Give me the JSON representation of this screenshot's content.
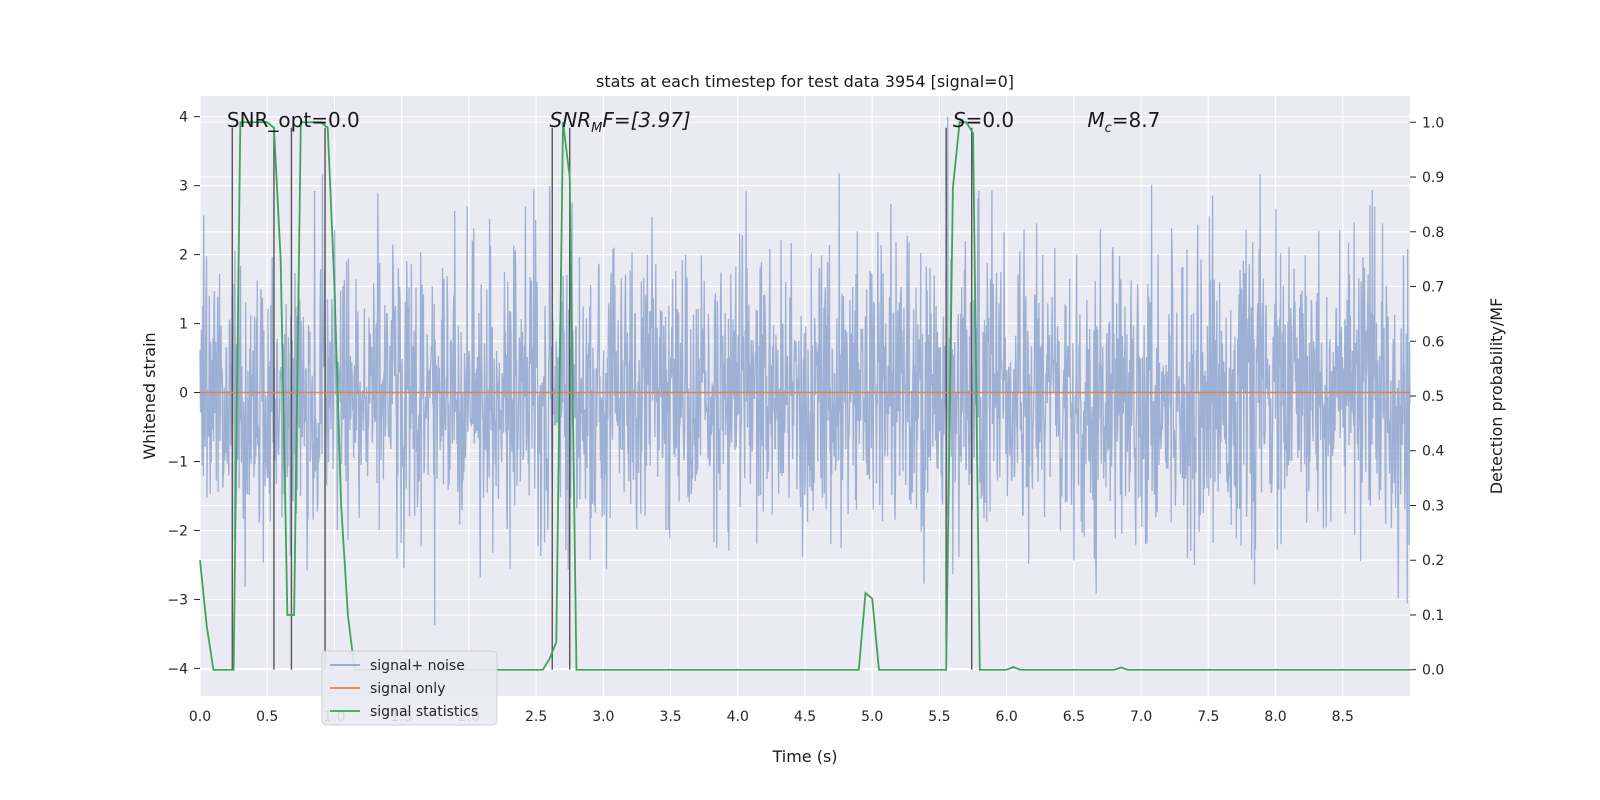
{
  "chart_data": {
    "type": "line",
    "title": "stats at each timestep for test data 3954 [signal=0]",
    "xlabel": "Time (s)",
    "ylabel": "Whitened strain",
    "ylabel_right": "Detection probability/MF",
    "xlim": [
      0,
      9
    ],
    "ylim": [
      -4.4,
      4.3
    ],
    "ylim_right": [
      -0.048,
      1.048
    ],
    "x_ticks": [
      "0.0",
      "0.5",
      "1.0",
      "1.5",
      "2.0",
      "2.5",
      "3.0",
      "3.5",
      "4.0",
      "4.5",
      "5.0",
      "5.5",
      "6.0",
      "6.5",
      "7.0",
      "7.5",
      "8.0",
      "8.5"
    ],
    "y_ticks": [
      "4",
      "3",
      "2",
      "1",
      "0",
      "−1",
      "−2",
      "−3",
      "−4"
    ],
    "y_ticks_right": [
      "1.0",
      "0.9",
      "0.8",
      "0.7",
      "0.6",
      "0.5",
      "0.4",
      "0.3",
      "0.2",
      "0.1",
      "0.0"
    ],
    "grid": true,
    "legend_position": "lower-left",
    "annotations": {
      "snr_opt": "SNR_opt=0.0",
      "snr_mf_main": "SNR",
      "snr_mf_sub": "M",
      "snr_mf_rest": "F=[3.97]",
      "s_main": "S",
      "s_rest": "=0.0",
      "mc_main": "M",
      "mc_sub": "c",
      "mc_rest": "=8.7"
    },
    "series": [
      {
        "name": "signal+ noise",
        "color": "#8fa5cc",
        "description": "whitened noise, approx. std 1.0 around 0",
        "amplitude_range": [
          -4.0,
          4.0
        ]
      },
      {
        "name": "signal only",
        "color": "#dd8452",
        "x": [
          0,
          9
        ],
        "y": [
          0,
          0
        ]
      },
      {
        "name": "signal statistics",
        "color": "#3fa35a",
        "axis": "right",
        "x": [
          0.0,
          0.05,
          0.1,
          0.15,
          0.2,
          0.25,
          0.3,
          0.35,
          0.4,
          0.45,
          0.5,
          0.55,
          0.6,
          0.65,
          0.7,
          0.75,
          0.8,
          0.85,
          0.9,
          0.95,
          1.0,
          1.05,
          1.1,
          1.15,
          1.2,
          2.5,
          2.55,
          2.6,
          2.65,
          2.7,
          2.75,
          2.8,
          2.85,
          4.8,
          4.85,
          4.9,
          4.95,
          5.0,
          5.05,
          5.5,
          5.55,
          5.6,
          5.65,
          5.7,
          5.75,
          5.8,
          5.85,
          6.0,
          6.05,
          6.1,
          6.8,
          6.85,
          6.9,
          6.95,
          8.9,
          9.0
        ],
        "y": [
          0.2,
          0.08,
          0.0,
          0.0,
          0.0,
          0.0,
          1.0,
          1.0,
          1.0,
          1.0,
          1.0,
          0.99,
          0.75,
          0.1,
          0.1,
          1.0,
          1.0,
          1.0,
          1.0,
          0.99,
          0.7,
          0.3,
          0.1,
          0.0,
          0.0,
          0.0,
          0.0,
          0.02,
          0.05,
          1.0,
          0.9,
          0.0,
          0.0,
          0.0,
          0.0,
          0.0,
          0.14,
          0.13,
          0.0,
          0.0,
          0.0,
          0.88,
          1.0,
          1.0,
          0.98,
          0.0,
          0.0,
          0.0,
          0.005,
          0.0,
          0.0,
          0.004,
          0.0,
          0.0,
          0.0,
          0.0
        ]
      }
    ],
    "vertical_markers_x": [
      0.24,
      0.55,
      0.68,
      0.93,
      2.62,
      2.75,
      5.55,
      5.74
    ]
  }
}
